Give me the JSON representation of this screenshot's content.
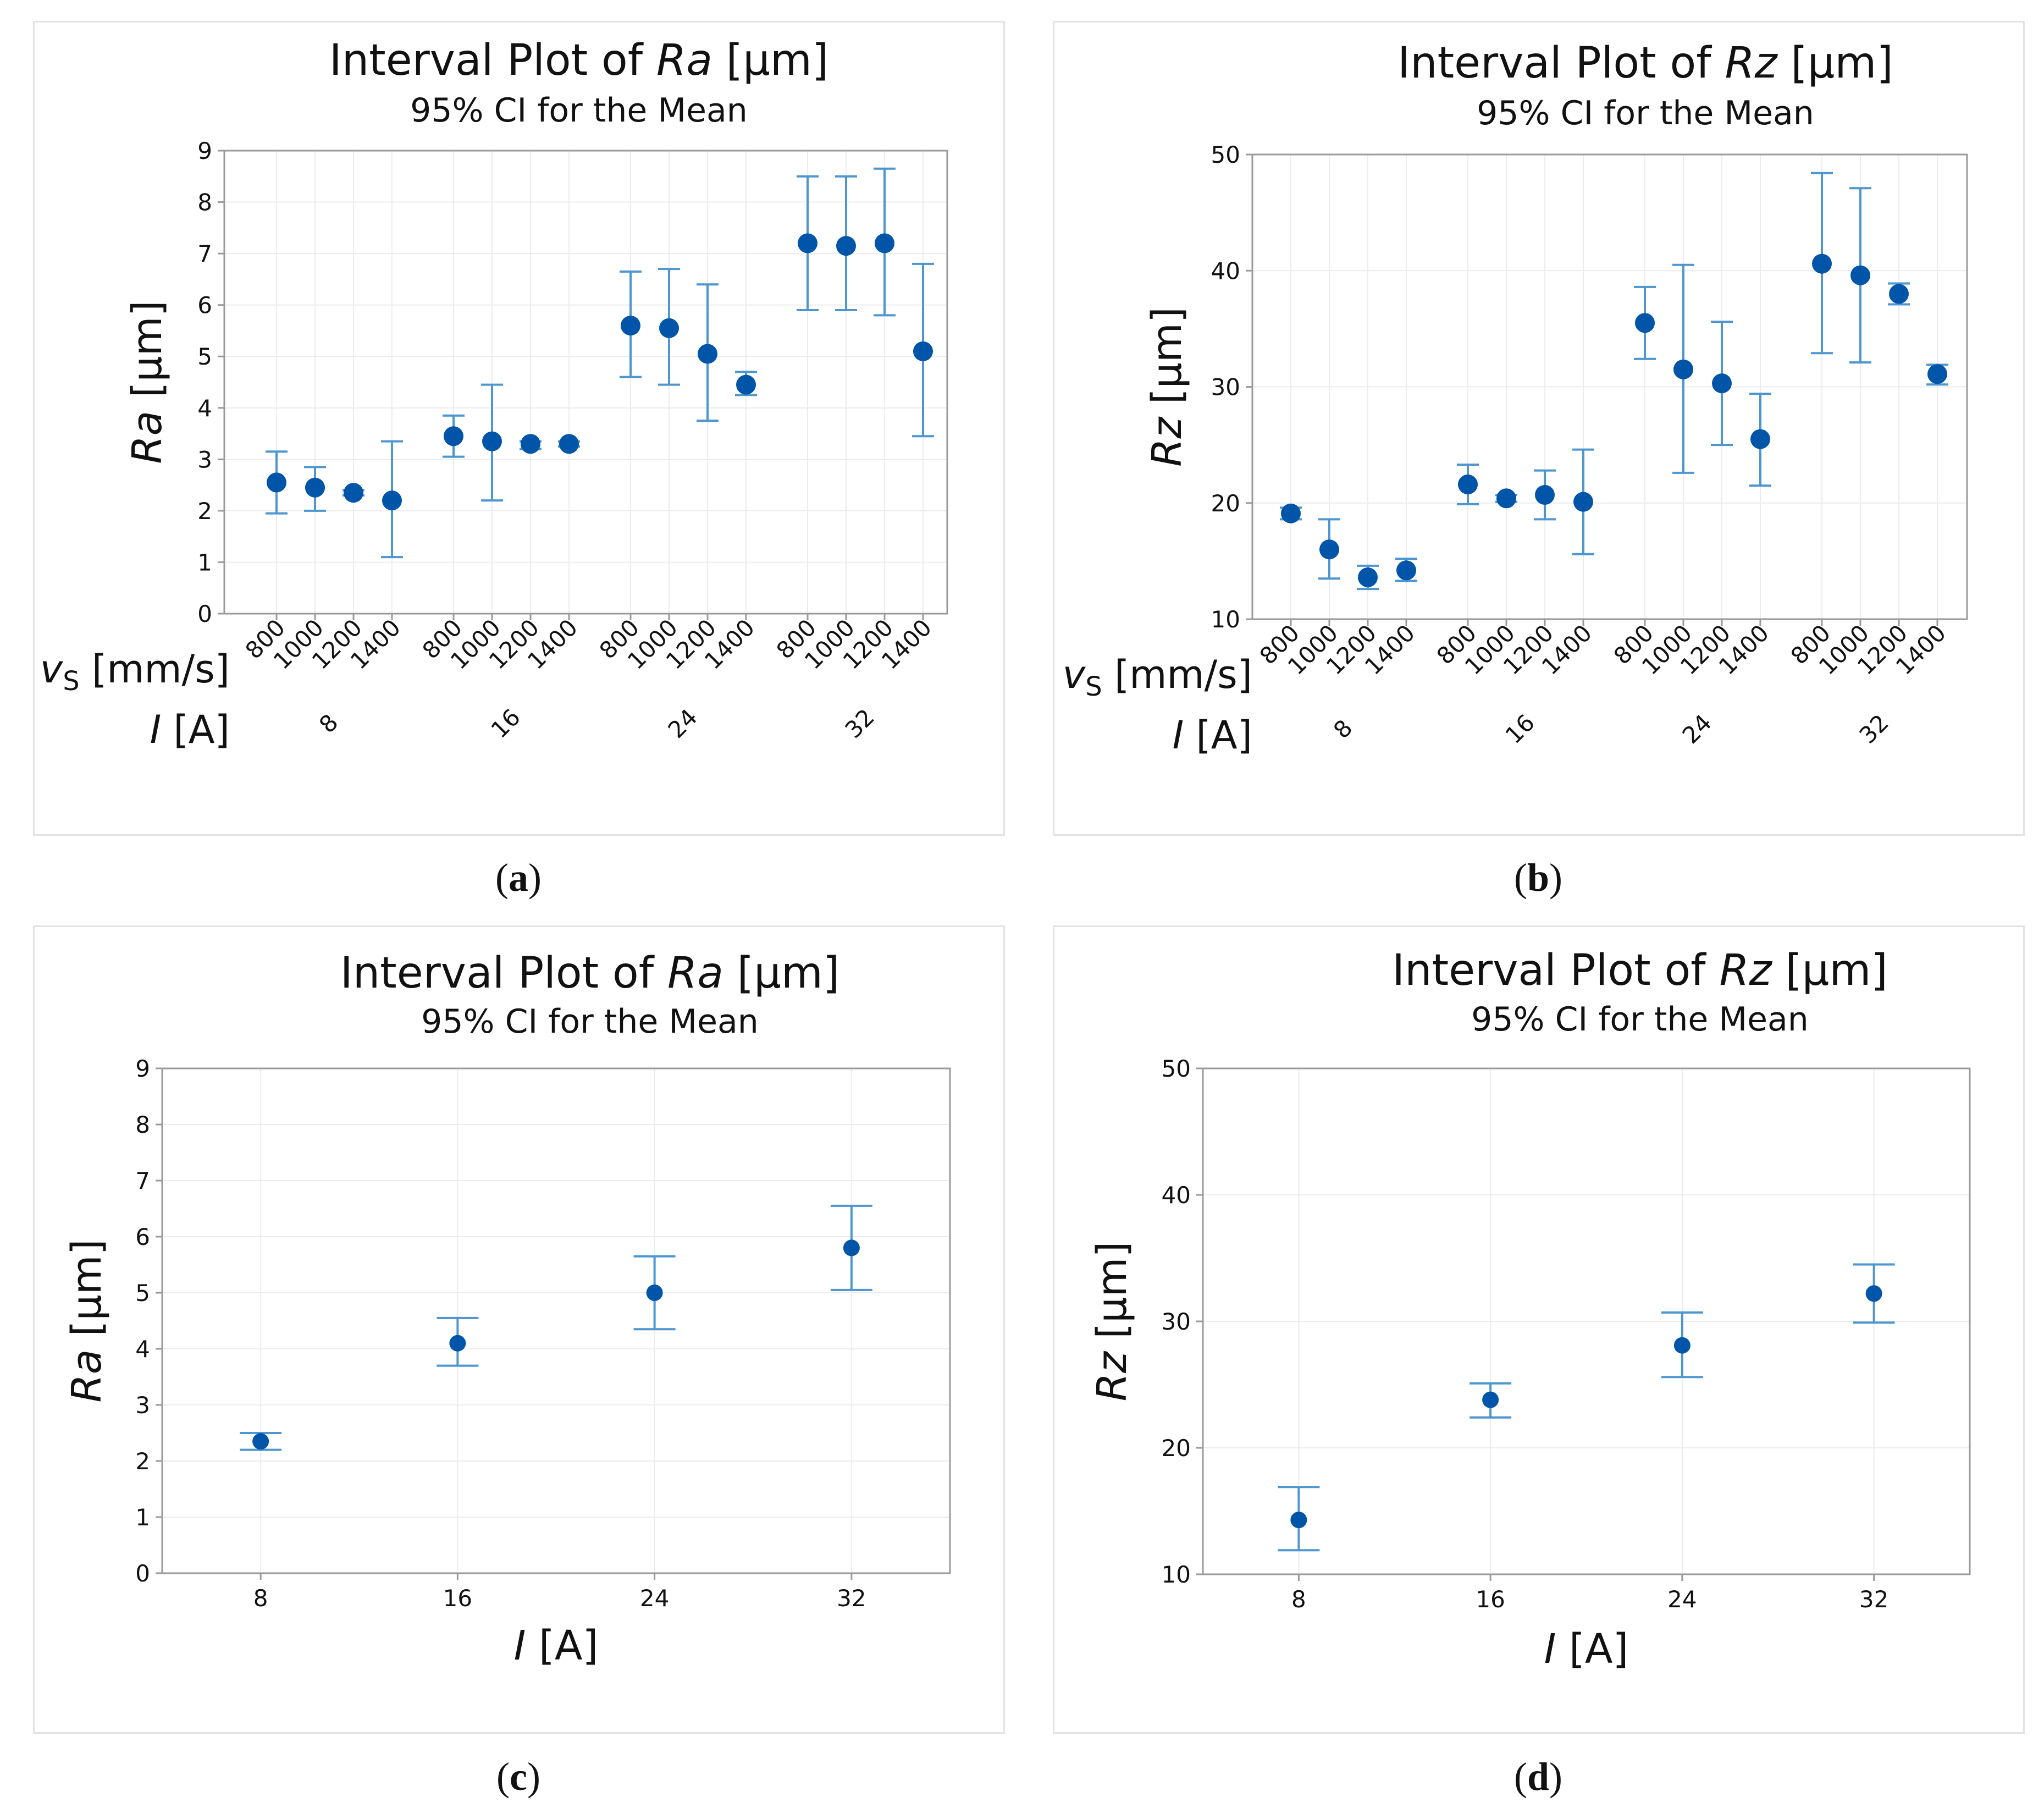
{
  "captions": [
    "a",
    "b",
    "c",
    "d"
  ],
  "chart_data": [
    {
      "type": "interval",
      "title_prefix": "Interval Plot of ",
      "title_var": "Ra",
      "title_unit": " [µm]",
      "subtitle": "95% CI for the Mean",
      "ylabel_var": "Ra",
      "ylabel_unit": " [µm]",
      "ylim": [
        0,
        9
      ],
      "yticks": [
        0,
        1,
        2,
        3,
        4,
        5,
        6,
        7,
        8,
        9
      ],
      "xlabel1_var": "v",
      "xlabel1_sub": "S",
      "xlabel1_unit": " [mm/s]",
      "xlabel2_var": "I",
      "xlabel2_unit": " [A]",
      "groups": [
        "8",
        "16",
        "24",
        "32"
      ],
      "subcategories": [
        "800",
        "1000",
        "1200",
        "1400"
      ],
      "points": [
        {
          "mean": 2.55,
          "low": 1.95,
          "high": 3.15
        },
        {
          "mean": 2.45,
          "low": 2.0,
          "high": 2.85
        },
        {
          "mean": 2.35,
          "low": 2.3,
          "high": 2.4
        },
        {
          "mean": 2.2,
          "low": 1.1,
          "high": 3.35
        },
        {
          "mean": 3.45,
          "low": 3.05,
          "high": 3.85
        },
        {
          "mean": 3.35,
          "low": 2.2,
          "high": 4.45
        },
        {
          "mean": 3.3,
          "low": 3.2,
          "high": 3.35
        },
        {
          "mean": 3.3,
          "low": 3.25,
          "high": 3.35
        },
        {
          "mean": 5.6,
          "low": 4.6,
          "high": 6.65
        },
        {
          "mean": 5.55,
          "low": 4.45,
          "high": 6.7
        },
        {
          "mean": 5.05,
          "low": 3.75,
          "high": 6.4
        },
        {
          "mean": 4.45,
          "low": 4.25,
          "high": 4.7
        },
        {
          "mean": 7.2,
          "low": 5.9,
          "high": 8.5
        },
        {
          "mean": 7.15,
          "low": 5.9,
          "high": 8.5
        },
        {
          "mean": 7.2,
          "low": 5.8,
          "high": 8.65
        },
        {
          "mean": 5.1,
          "low": 3.45,
          "high": 6.8
        }
      ]
    },
    {
      "type": "interval",
      "title_prefix": "Interval Plot of ",
      "title_var": "Rz",
      "title_unit": " [µm]",
      "subtitle": "95% CI for the Mean",
      "ylabel_var": "Rz",
      "ylabel_unit": " [µm]",
      "ylim": [
        10,
        50
      ],
      "yticks": [
        10,
        20,
        30,
        40,
        50
      ],
      "xlabel1_var": "v",
      "xlabel1_sub": "S",
      "xlabel1_unit": " [mm/s]",
      "xlabel2_var": "I",
      "xlabel2_unit": " [A]",
      "groups": [
        "8",
        "16",
        "24",
        "32"
      ],
      "subcategories": [
        "800",
        "1000",
        "1200",
        "1400"
      ],
      "points": [
        {
          "mean": 19.1,
          "low": 18.6,
          "high": 19.6
        },
        {
          "mean": 16.0,
          "low": 13.5,
          "high": 18.6
        },
        {
          "mean": 13.6,
          "low": 12.6,
          "high": 14.6
        },
        {
          "mean": 14.2,
          "low": 13.3,
          "high": 15.2
        },
        {
          "mean": 21.6,
          "low": 19.9,
          "high": 23.3
        },
        {
          "mean": 20.4,
          "low": 20.1,
          "high": 20.7
        },
        {
          "mean": 20.7,
          "low": 18.6,
          "high": 22.8
        },
        {
          "mean": 20.1,
          "low": 15.6,
          "high": 24.6
        },
        {
          "mean": 35.5,
          "low": 32.4,
          "high": 38.6
        },
        {
          "mean": 31.5,
          "low": 22.6,
          "high": 40.5
        },
        {
          "mean": 30.3,
          "low": 25.0,
          "high": 35.6
        },
        {
          "mean": 25.5,
          "low": 21.5,
          "high": 29.4
        },
        {
          "mean": 40.6,
          "low": 32.9,
          "high": 48.4
        },
        {
          "mean": 39.6,
          "low": 32.1,
          "high": 47.1
        },
        {
          "mean": 38.0,
          "low": 37.1,
          "high": 38.9
        },
        {
          "mean": 31.1,
          "low": 30.2,
          "high": 31.9
        }
      ]
    },
    {
      "type": "interval",
      "title_prefix": "Interval Plot of ",
      "title_var": "Ra",
      "title_unit": " [µm]",
      "subtitle": "95% CI for the Mean",
      "ylabel_var": "Ra",
      "ylabel_unit": " [µm]",
      "ylim": [
        0,
        9
      ],
      "yticks": [
        0,
        1,
        2,
        3,
        4,
        5,
        6,
        7,
        8,
        9
      ],
      "xlabel_var": "I",
      "xlabel_unit": " [A]",
      "categories": [
        "8",
        "16",
        "24",
        "32"
      ],
      "points": [
        {
          "mean": 2.35,
          "low": 2.2,
          "high": 2.5
        },
        {
          "mean": 4.1,
          "low": 3.7,
          "high": 4.55
        },
        {
          "mean": 5.0,
          "low": 4.35,
          "high": 5.65
        },
        {
          "mean": 5.8,
          "low": 5.05,
          "high": 6.55
        }
      ]
    },
    {
      "type": "interval",
      "title_prefix": "Interval Plot of ",
      "title_var": "Rz",
      "title_unit": " [µm]",
      "subtitle": "95% CI for the Mean",
      "ylabel_var": "Rz",
      "ylabel_unit": " [µm]",
      "ylim": [
        10,
        50
      ],
      "yticks": [
        10,
        20,
        30,
        40,
        50
      ],
      "xlabel_var": "I",
      "xlabel_unit": " [A]",
      "categories": [
        "8",
        "16",
        "24",
        "32"
      ],
      "points": [
        {
          "mean": 14.3,
          "low": 11.9,
          "high": 16.9
        },
        {
          "mean": 23.8,
          "low": 22.4,
          "high": 25.1
        },
        {
          "mean": 28.1,
          "low": 25.6,
          "high": 30.7
        },
        {
          "mean": 32.2,
          "low": 29.9,
          "high": 34.5
        }
      ]
    }
  ]
}
